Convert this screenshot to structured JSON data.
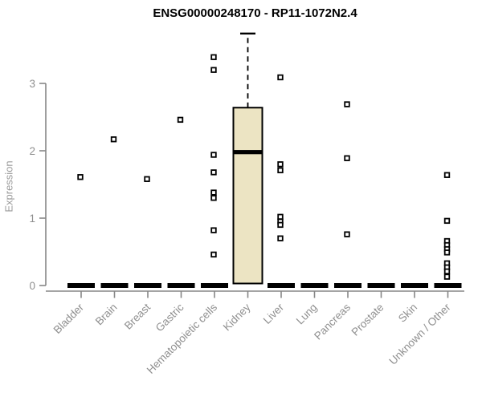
{
  "chart_data": {
    "type": "boxplot",
    "title": "ENSG00000248170 - RP11-1072N2.4",
    "ylabel": "Expression",
    "xlabel": "",
    "yticks": [
      0,
      1,
      2,
      3
    ],
    "ylim": [
      0,
      3.8
    ],
    "grid": false,
    "legend": "none",
    "categories": [
      "Bladder",
      "Brain",
      "Breast",
      "Gastric",
      "Hematopoietic cells",
      "Kidney",
      "Liver",
      "Lung",
      "Pancreas",
      "Prostate",
      "Skin",
      "Unknown / Other"
    ],
    "boxes": [
      {
        "category": "Bladder",
        "q1": 0,
        "median": 0,
        "q3": 0,
        "whisker_low": 0,
        "whisker_high": 0,
        "outliers": [
          1.61
        ]
      },
      {
        "category": "Brain",
        "q1": 0,
        "median": 0,
        "q3": 0,
        "whisker_low": 0,
        "whisker_high": 0,
        "outliers": [
          2.17
        ]
      },
      {
        "category": "Breast",
        "q1": 0,
        "median": 0,
        "q3": 0,
        "whisker_low": 0,
        "whisker_high": 0,
        "outliers": [
          1.58
        ]
      },
      {
        "category": "Gastric",
        "q1": 0,
        "median": 0,
        "q3": 0,
        "whisker_low": 0,
        "whisker_high": 0,
        "outliers": [
          2.46
        ]
      },
      {
        "category": "Hematopoietic cells",
        "q1": 0,
        "median": 0,
        "q3": 0,
        "whisker_low": 0,
        "whisker_high": 0,
        "outliers": [
          3.39,
          3.2,
          1.94,
          1.68,
          1.38,
          1.3,
          0.82,
          0.46
        ]
      },
      {
        "category": "Kidney",
        "q1": 0.03,
        "median": 1.98,
        "q3": 2.64,
        "whisker_low": 0.03,
        "whisker_high": 3.74,
        "outliers": []
      },
      {
        "category": "Liver",
        "q1": 0,
        "median": 0,
        "q3": 0,
        "whisker_low": 0,
        "whisker_high": 0,
        "outliers": [
          3.09,
          1.8,
          1.71,
          1.02,
          0.95,
          0.9,
          0.7
        ]
      },
      {
        "category": "Lung",
        "q1": 0,
        "median": 0,
        "q3": 0,
        "whisker_low": 0,
        "whisker_high": 0,
        "outliers": []
      },
      {
        "category": "Pancreas",
        "q1": 0,
        "median": 0,
        "q3": 0,
        "whisker_low": 0,
        "whisker_high": 0,
        "outliers": [
          2.69,
          1.89,
          0.76
        ]
      },
      {
        "category": "Prostate",
        "q1": 0,
        "median": 0,
        "q3": 0,
        "whisker_low": 0,
        "whisker_high": 0,
        "outliers": []
      },
      {
        "category": "Skin",
        "q1": 0,
        "median": 0,
        "q3": 0,
        "whisker_low": 0,
        "whisker_high": 0,
        "outliers": []
      },
      {
        "category": "Unknown / Other",
        "q1": 0,
        "median": 0,
        "q3": 0,
        "whisker_low": 0,
        "whisker_high": 0,
        "outliers": [
          1.64,
          0.96,
          0.66,
          0.6,
          0.54,
          0.49,
          0.33,
          0.27,
          0.21,
          0.13
        ]
      }
    ],
    "colors": {
      "box_fill": "#ece4c3",
      "box_border": "#000000",
      "bar": "#000000",
      "axis_line": "#878787",
      "tick_text": "#8f8f8f",
      "title_text": "#000000"
    }
  }
}
